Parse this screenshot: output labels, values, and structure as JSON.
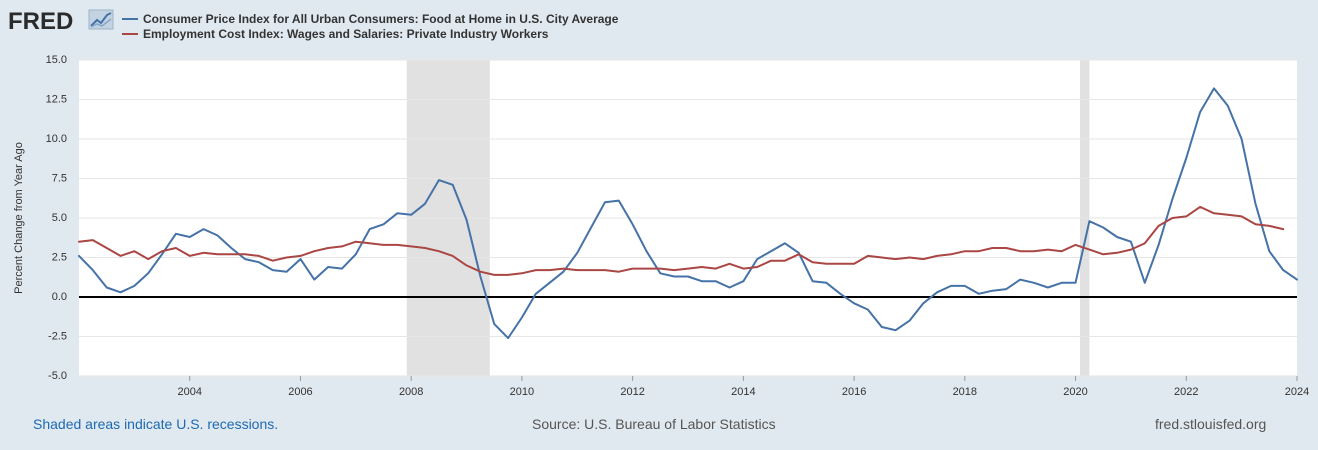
{
  "logo": {
    "text": "FRED"
  },
  "legend": [
    {
      "label": "Consumer Price Index for All Urban Consumers: Food at Home in U.S. City Average",
      "color": "#4572a7"
    },
    {
      "label": "Employment Cost Index: Wages and Salaries: Private Industry Workers",
      "color": "#aa4643"
    }
  ],
  "footer": {
    "recession_note": "Shaded areas indicate U.S. recessions.",
    "source": "Source: U.S. Bureau of Labor Statistics",
    "site": "fred.stlouisfed.org"
  },
  "chart_data": {
    "type": "line",
    "ylabel": "Percent Change from Year Ago",
    "xlim": [
      2002.0,
      2024.0
    ],
    "ylim": [
      -5.0,
      15.0
    ],
    "x_ticks": [
      2004,
      2006,
      2008,
      2010,
      2012,
      2014,
      2016,
      2018,
      2020,
      2022,
      2024
    ],
    "y_ticks": [
      "15.0",
      "12.5",
      "10.0",
      "7.5",
      "5.0",
      "2.5",
      "0.0",
      "-2.5",
      "-5.0"
    ],
    "grid": "horizontal",
    "zero_line": true,
    "recessions": [
      [
        2007.92,
        2009.42
      ],
      [
        2020.08,
        2020.25
      ]
    ],
    "series": [
      {
        "name": "Consumer Price Index for All Urban Consumers: Food at Home in U.S. City Average",
        "color": "#4572a7",
        "points": [
          [
            2002.0,
            2.6
          ],
          [
            2002.25,
            1.7
          ],
          [
            2002.5,
            0.6
          ],
          [
            2002.75,
            0.3
          ],
          [
            2003.0,
            0.7
          ],
          [
            2003.25,
            1.5
          ],
          [
            2003.5,
            2.7
          ],
          [
            2003.75,
            4.0
          ],
          [
            2004.0,
            3.8
          ],
          [
            2004.25,
            4.3
          ],
          [
            2004.5,
            3.9
          ],
          [
            2004.75,
            3.1
          ],
          [
            2005.0,
            2.4
          ],
          [
            2005.25,
            2.2
          ],
          [
            2005.5,
            1.7
          ],
          [
            2005.75,
            1.6
          ],
          [
            2006.0,
            2.4
          ],
          [
            2006.25,
            1.1
          ],
          [
            2006.5,
            1.9
          ],
          [
            2006.75,
            1.8
          ],
          [
            2007.0,
            2.7
          ],
          [
            2007.25,
            4.3
          ],
          [
            2007.5,
            4.6
          ],
          [
            2007.75,
            5.3
          ],
          [
            2008.0,
            5.2
          ],
          [
            2008.25,
            5.9
          ],
          [
            2008.5,
            7.4
          ],
          [
            2008.75,
            7.1
          ],
          [
            2009.0,
            4.9
          ],
          [
            2009.25,
            1.3
          ],
          [
            2009.5,
            -1.7
          ],
          [
            2009.75,
            -2.6
          ],
          [
            2010.0,
            -1.3
          ],
          [
            2010.25,
            0.2
          ],
          [
            2010.5,
            0.9
          ],
          [
            2010.75,
            1.6
          ],
          [
            2011.0,
            2.8
          ],
          [
            2011.25,
            4.4
          ],
          [
            2011.5,
            6.0
          ],
          [
            2011.75,
            6.1
          ],
          [
            2012.0,
            4.6
          ],
          [
            2012.25,
            2.9
          ],
          [
            2012.5,
            1.5
          ],
          [
            2012.75,
            1.3
          ],
          [
            2013.0,
            1.3
          ],
          [
            2013.25,
            1.0
          ],
          [
            2013.5,
            1.0
          ],
          [
            2013.75,
            0.6
          ],
          [
            2014.0,
            1.0
          ],
          [
            2014.25,
            2.4
          ],
          [
            2014.5,
            2.9
          ],
          [
            2014.75,
            3.4
          ],
          [
            2015.0,
            2.8
          ],
          [
            2015.25,
            1.0
          ],
          [
            2015.5,
            0.9
          ],
          [
            2015.75,
            0.2
          ],
          [
            2016.0,
            -0.4
          ],
          [
            2016.25,
            -0.8
          ],
          [
            2016.5,
            -1.9
          ],
          [
            2016.75,
            -2.1
          ],
          [
            2017.0,
            -1.5
          ],
          [
            2017.25,
            -0.4
          ],
          [
            2017.5,
            0.3
          ],
          [
            2017.75,
            0.7
          ],
          [
            2018.0,
            0.7
          ],
          [
            2018.25,
            0.2
          ],
          [
            2018.5,
            0.4
          ],
          [
            2018.75,
            0.5
          ],
          [
            2019.0,
            1.1
          ],
          [
            2019.25,
            0.9
          ],
          [
            2019.5,
            0.6
          ],
          [
            2019.75,
            0.9
          ],
          [
            2020.0,
            0.9
          ],
          [
            2020.25,
            4.8
          ],
          [
            2020.5,
            4.4
          ],
          [
            2020.75,
            3.8
          ],
          [
            2021.0,
            3.5
          ],
          [
            2021.25,
            0.9
          ],
          [
            2021.5,
            3.3
          ],
          [
            2021.75,
            6.2
          ],
          [
            2022.0,
            8.8
          ],
          [
            2022.25,
            11.7
          ],
          [
            2022.5,
            13.2
          ],
          [
            2022.75,
            12.1
          ],
          [
            2023.0,
            10.0
          ],
          [
            2023.25,
            5.9
          ],
          [
            2023.5,
            2.9
          ],
          [
            2023.75,
            1.7
          ],
          [
            2024.0,
            1.1
          ]
        ]
      },
      {
        "name": "Employment Cost Index: Wages and Salaries: Private Industry Workers",
        "color": "#aa4643",
        "points": [
          [
            2002.0,
            3.5
          ],
          [
            2002.25,
            3.6
          ],
          [
            2002.5,
            3.1
          ],
          [
            2002.75,
            2.6
          ],
          [
            2003.0,
            2.9
          ],
          [
            2003.25,
            2.4
          ],
          [
            2003.5,
            2.9
          ],
          [
            2003.75,
            3.1
          ],
          [
            2004.0,
            2.6
          ],
          [
            2004.25,
            2.8
          ],
          [
            2004.5,
            2.7
          ],
          [
            2004.75,
            2.7
          ],
          [
            2005.0,
            2.7
          ],
          [
            2005.25,
            2.6
          ],
          [
            2005.5,
            2.3
          ],
          [
            2005.75,
            2.5
          ],
          [
            2006.0,
            2.6
          ],
          [
            2006.25,
            2.9
          ],
          [
            2006.5,
            3.1
          ],
          [
            2006.75,
            3.2
          ],
          [
            2007.0,
            3.5
          ],
          [
            2007.25,
            3.4
          ],
          [
            2007.5,
            3.3
          ],
          [
            2007.75,
            3.3
          ],
          [
            2008.0,
            3.2
          ],
          [
            2008.25,
            3.1
          ],
          [
            2008.5,
            2.9
          ],
          [
            2008.75,
            2.6
          ],
          [
            2009.0,
            2.0
          ],
          [
            2009.25,
            1.6
          ],
          [
            2009.5,
            1.4
          ],
          [
            2009.75,
            1.4
          ],
          [
            2010.0,
            1.5
          ],
          [
            2010.25,
            1.7
          ],
          [
            2010.5,
            1.7
          ],
          [
            2010.75,
            1.8
          ],
          [
            2011.0,
            1.7
          ],
          [
            2011.25,
            1.7
          ],
          [
            2011.5,
            1.7
          ],
          [
            2011.75,
            1.6
          ],
          [
            2012.0,
            1.8
          ],
          [
            2012.25,
            1.8
          ],
          [
            2012.5,
            1.8
          ],
          [
            2012.75,
            1.7
          ],
          [
            2013.0,
            1.8
          ],
          [
            2013.25,
            1.9
          ],
          [
            2013.5,
            1.8
          ],
          [
            2013.75,
            2.1
          ],
          [
            2014.0,
            1.8
          ],
          [
            2014.25,
            1.9
          ],
          [
            2014.5,
            2.3
          ],
          [
            2014.75,
            2.3
          ],
          [
            2015.0,
            2.7
          ],
          [
            2015.25,
            2.2
          ],
          [
            2015.5,
            2.1
          ],
          [
            2015.75,
            2.1
          ],
          [
            2016.0,
            2.1
          ],
          [
            2016.25,
            2.6
          ],
          [
            2016.5,
            2.5
          ],
          [
            2016.75,
            2.4
          ],
          [
            2017.0,
            2.5
          ],
          [
            2017.25,
            2.4
          ],
          [
            2017.5,
            2.6
          ],
          [
            2017.75,
            2.7
          ],
          [
            2018.0,
            2.9
          ],
          [
            2018.25,
            2.9
          ],
          [
            2018.5,
            3.1
          ],
          [
            2018.75,
            3.1
          ],
          [
            2019.0,
            2.9
          ],
          [
            2019.25,
            2.9
          ],
          [
            2019.5,
            3.0
          ],
          [
            2019.75,
            2.9
          ],
          [
            2020.0,
            3.3
          ],
          [
            2020.25,
            3.0
          ],
          [
            2020.5,
            2.7
          ],
          [
            2020.75,
            2.8
          ],
          [
            2021.0,
            3.0
          ],
          [
            2021.25,
            3.4
          ],
          [
            2021.5,
            4.5
          ],
          [
            2021.75,
            5.0
          ],
          [
            2022.0,
            5.1
          ],
          [
            2022.25,
            5.7
          ],
          [
            2022.5,
            5.3
          ],
          [
            2022.75,
            5.2
          ],
          [
            2023.0,
            5.1
          ],
          [
            2023.25,
            4.6
          ],
          [
            2023.5,
            4.5
          ],
          [
            2023.75,
            4.3
          ]
        ]
      }
    ]
  }
}
